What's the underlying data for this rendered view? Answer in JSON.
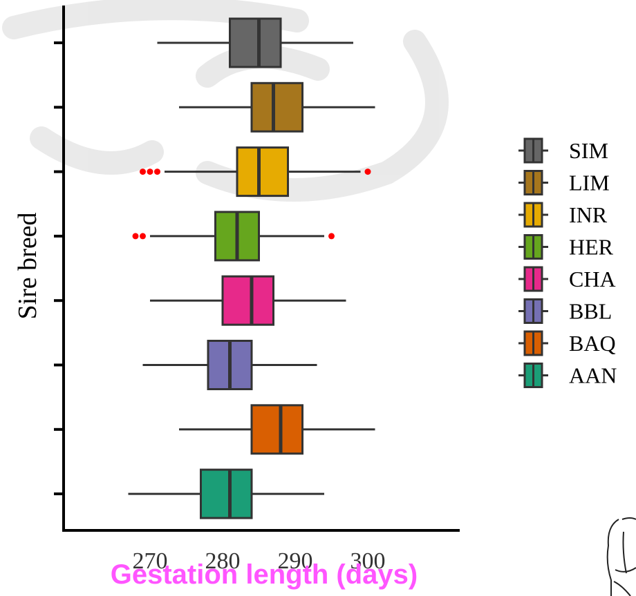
{
  "chart_data": {
    "type": "boxplot",
    "orientation": "horizontal",
    "xlabel": "Gestation length (days)",
    "xlabel_color": "#FF55FF",
    "ylabel": "Sire breed",
    "x_ticks": [
      270,
      280,
      290,
      300
    ],
    "xlim": [
      260.5,
      313
    ],
    "legend_position": "right",
    "outlier_color": "#FF0000",
    "series": [
      {
        "name": "SIM",
        "color": "#666666",
        "whisker_low": 271,
        "q1": 281,
        "median": 285,
        "q3": 288,
        "whisker_high": 298,
        "outliers": []
      },
      {
        "name": "LIM",
        "color": "#A6761D",
        "whisker_low": 274,
        "q1": 284,
        "median": 287,
        "q3": 291,
        "whisker_high": 301,
        "outliers": []
      },
      {
        "name": "INR",
        "color": "#E6AB02",
        "whisker_low": 272,
        "q1": 282,
        "median": 285,
        "q3": 289,
        "whisker_high": 299,
        "outliers": [
          269,
          270,
          271,
          300
        ]
      },
      {
        "name": "HER",
        "color": "#66A61E",
        "whisker_low": 270,
        "q1": 279,
        "median": 282,
        "q3": 285,
        "whisker_high": 294,
        "outliers": [
          268,
          269,
          295
        ]
      },
      {
        "name": "CHA",
        "color": "#E7298A",
        "whisker_low": 270,
        "q1": 280,
        "median": 284,
        "q3": 287,
        "whisker_high": 297,
        "outliers": []
      },
      {
        "name": "BBL",
        "color": "#7570B3",
        "whisker_low": 269,
        "q1": 278,
        "median": 281,
        "q3": 284,
        "whisker_high": 293,
        "outliers": []
      },
      {
        "name": "BAQ",
        "color": "#D95F02",
        "whisker_low": 274,
        "q1": 284,
        "median": 288,
        "q3": 291,
        "whisker_high": 301,
        "outliers": []
      },
      {
        "name": "AAN",
        "color": "#1B9E77",
        "whisker_low": 267,
        "q1": 277,
        "median": 281,
        "q3": 284,
        "whisker_high": 294,
        "outliers": []
      }
    ]
  }
}
